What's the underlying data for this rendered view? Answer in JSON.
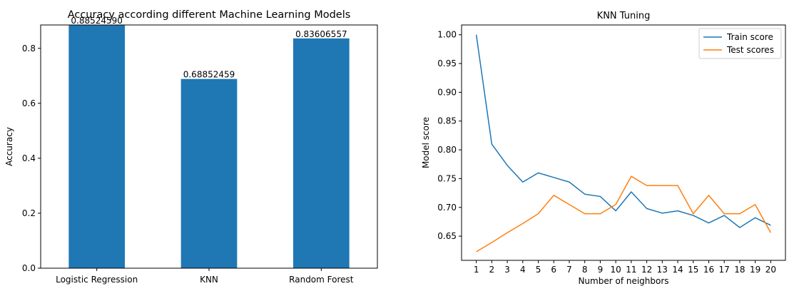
{
  "chart_data": [
    {
      "type": "bar",
      "title": "Accuracy according different Machine Learning Models",
      "xlabel": "",
      "ylabel": "Accuracy",
      "categories": [
        "Logistic Regression",
        "KNN",
        "Random Forest"
      ],
      "values": [
        0.8852459,
        0.68852459,
        0.83606557
      ],
      "value_labels": [
        "0.88524590",
        "0.68852459",
        "0.83606557"
      ],
      "ylim": [
        0,
        0.885
      ],
      "yticks": [
        0.0,
        0.2,
        0.4,
        0.6,
        0.8
      ],
      "ytick_labels": [
        "0.0",
        "0.2",
        "0.4",
        "0.6",
        "0.8"
      ],
      "bar_color": "#1f77b4",
      "grid": false,
      "legend": "none"
    },
    {
      "type": "line",
      "title": "KNN Tuning",
      "xlabel": "Number of neighbors",
      "ylabel": "Model score",
      "x": [
        1,
        2,
        3,
        4,
        5,
        6,
        7,
        8,
        9,
        10,
        11,
        12,
        13,
        14,
        15,
        16,
        17,
        18,
        19,
        20
      ],
      "xtick_labels": [
        "1",
        "2",
        "3",
        "4",
        "5",
        "6",
        "7",
        "8",
        "9",
        "10",
        "11",
        "12",
        "13",
        "14",
        "15",
        "16",
        "17",
        "18",
        "19",
        "20"
      ],
      "xlim": [
        0.05,
        20.95
      ],
      "ylim": [
        0.608,
        1.017
      ],
      "yticks": [
        0.65,
        0.7,
        0.75,
        0.8,
        0.85,
        0.9,
        0.95,
        1.0
      ],
      "ytick_labels": [
        "0.65",
        "0.70",
        "0.75",
        "0.80",
        "0.85",
        "0.90",
        "0.95",
        "1.00"
      ],
      "series": [
        {
          "name": "Train score",
          "color": "#1f77b4",
          "values": [
            1.0,
            0.81,
            0.773,
            0.744,
            0.76,
            0.752,
            0.744,
            0.723,
            0.719,
            0.694,
            0.727,
            0.698,
            0.69,
            0.694,
            0.686,
            0.673,
            0.686,
            0.665,
            0.682,
            0.669
          ]
        },
        {
          "name": "Test scores",
          "color": "#ff7f0e",
          "values": [
            0.623,
            0.639,
            0.656,
            0.672,
            0.689,
            0.721,
            0.705,
            0.689,
            0.689,
            0.705,
            0.754,
            0.738,
            0.738,
            0.738,
            0.689,
            0.721,
            0.689,
            0.689,
            0.705,
            0.656
          ]
        }
      ],
      "grid": false,
      "legend": "top-right"
    }
  ]
}
